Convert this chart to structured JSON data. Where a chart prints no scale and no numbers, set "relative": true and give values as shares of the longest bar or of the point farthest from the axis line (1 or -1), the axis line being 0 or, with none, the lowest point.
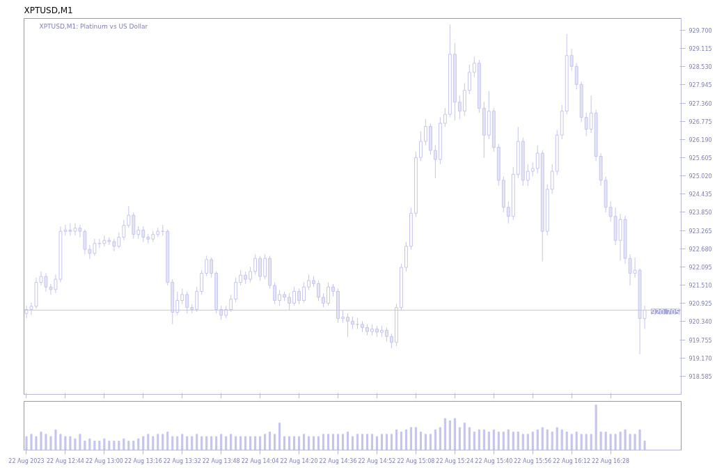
{
  "chart_data": [
    {
      "type": "candlestick",
      "tick_labels": "y",
      "title": "XPTUSD,M1",
      "subtitle": "XPTUSD,M1: Platinum vs US Dollar",
      "color": "#c4c4ee",
      "x": [
        "2023-08-22T12:28",
        "2023-08-22T12:30",
        "2023-08-22T12:32",
        "2023-08-22T12:34",
        "2023-08-22T12:36",
        "2023-08-22T12:38",
        "2023-08-22T12:40",
        "2023-08-22T12:42",
        "2023-08-22T12:44",
        "2023-08-22T12:46",
        "2023-08-22T12:48",
        "2023-08-22T12:50",
        "2023-08-22T12:52",
        "2023-08-22T12:54",
        "2023-08-22T12:56",
        "2023-08-22T12:58",
        "2023-08-22T13:00",
        "2023-08-22T13:02",
        "2023-08-22T13:04",
        "2023-08-22T13:06",
        "2023-08-22T13:08",
        "2023-08-22T13:10",
        "2023-08-22T13:12",
        "2023-08-22T13:14",
        "2023-08-22T13:16",
        "2023-08-22T13:18",
        "2023-08-22T13:20",
        "2023-08-22T13:22",
        "2023-08-22T13:24",
        "2023-08-22T13:26",
        "2023-08-22T13:28",
        "2023-08-22T13:30",
        "2023-08-22T13:32",
        "2023-08-22T13:34",
        "2023-08-22T13:36",
        "2023-08-22T13:38",
        "2023-08-22T13:40",
        "2023-08-22T13:42",
        "2023-08-22T13:44",
        "2023-08-22T13:46",
        "2023-08-22T13:48",
        "2023-08-22T13:50",
        "2023-08-22T13:52",
        "2023-08-22T13:54",
        "2023-08-22T13:56",
        "2023-08-22T13:58",
        "2023-08-22T14:00",
        "2023-08-22T14:02",
        "2023-08-22T14:04",
        "2023-08-22T14:06",
        "2023-08-22T14:08",
        "2023-08-22T14:10",
        "2023-08-22T14:12",
        "2023-08-22T14:14",
        "2023-08-22T14:16",
        "2023-08-22T14:18",
        "2023-08-22T14:20",
        "2023-08-22T14:22",
        "2023-08-22T14:24",
        "2023-08-22T14:26",
        "2023-08-22T14:28",
        "2023-08-22T14:30",
        "2023-08-22T14:32",
        "2023-08-22T14:34",
        "2023-08-22T14:36",
        "2023-08-22T14:38",
        "2023-08-22T14:40",
        "2023-08-22T14:42",
        "2023-08-22T14:44",
        "2023-08-22T14:46",
        "2023-08-22T14:48",
        "2023-08-22T14:50",
        "2023-08-22T14:52",
        "2023-08-22T14:54",
        "2023-08-22T14:56",
        "2023-08-22T14:58",
        "2023-08-22T15:00",
        "2023-08-22T15:02",
        "2023-08-22T15:04",
        "2023-08-22T15:06",
        "2023-08-22T15:08",
        "2023-08-22T15:10",
        "2023-08-22T15:12",
        "2023-08-22T15:14",
        "2023-08-22T15:16",
        "2023-08-22T15:18",
        "2023-08-22T15:20",
        "2023-08-22T15:22",
        "2023-08-22T15:24",
        "2023-08-22T15:26",
        "2023-08-22T15:28",
        "2023-08-22T15:30",
        "2023-08-22T15:32",
        "2023-08-22T15:34",
        "2023-08-22T15:36",
        "2023-08-22T15:38",
        "2023-08-22T15:40",
        "2023-08-22T15:42",
        "2023-08-22T15:44",
        "2023-08-22T15:46",
        "2023-08-22T15:48",
        "2023-08-22T15:50",
        "2023-08-22T15:52",
        "2023-08-22T15:54",
        "2023-08-22T15:56",
        "2023-08-22T15:58",
        "2023-08-22T16:00",
        "2023-08-22T16:02",
        "2023-08-22T16:04",
        "2023-08-22T16:06",
        "2023-08-22T16:08",
        "2023-08-22T16:10",
        "2023-08-22T16:12",
        "2023-08-22T16:14",
        "2023-08-22T16:16",
        "2023-08-22T16:18",
        "2023-08-22T16:20",
        "2023-08-22T16:22",
        "2023-08-22T16:24",
        "2023-08-22T16:26",
        "2023-08-22T16:28",
        "2023-08-22T16:30",
        "2023-08-22T16:32",
        "2023-08-22T16:34",
        "2023-08-22T16:36",
        "2023-08-22T16:38",
        "2023-08-22T16:40",
        "2023-08-22T16:42"
      ],
      "ohlc": [
        [
          920.6,
          920.85,
          920.45,
          920.73
        ],
        [
          920.73,
          920.95,
          920.55,
          920.83
        ],
        [
          920.83,
          921.75,
          920.75,
          921.6
        ],
        [
          921.6,
          921.95,
          921.5,
          921.79
        ],
        [
          921.79,
          921.9,
          921.3,
          921.45
        ],
        [
          921.45,
          921.55,
          921.2,
          921.37
        ],
        [
          921.37,
          921.85,
          921.25,
          921.7
        ],
        [
          921.7,
          923.4,
          921.6,
          923.24
        ],
        [
          923.24,
          923.45,
          923.1,
          923.28
        ],
        [
          923.28,
          923.5,
          923.1,
          923.24
        ],
        [
          923.24,
          923.5,
          923.1,
          923.34
        ],
        [
          923.34,
          923.45,
          923.05,
          923.24
        ],
        [
          923.24,
          923.3,
          922.5,
          922.66
        ],
        [
          922.66,
          922.8,
          922.35,
          922.53
        ],
        [
          922.53,
          923.0,
          922.45,
          922.85
        ],
        [
          922.85,
          923.0,
          922.7,
          922.85
        ],
        [
          922.85,
          923.1,
          922.75,
          922.95
        ],
        [
          922.95,
          923.05,
          922.8,
          922.91
        ],
        [
          922.91,
          923.0,
          922.6,
          922.76
        ],
        [
          922.76,
          923.2,
          922.7,
          923.05
        ],
        [
          923.05,
          923.6,
          922.95,
          923.43
        ],
        [
          923.43,
          924.05,
          923.35,
          923.76
        ],
        [
          923.76,
          923.85,
          923.0,
          923.14
        ],
        [
          923.14,
          923.4,
          923.0,
          923.28
        ],
        [
          923.28,
          923.4,
          922.9,
          923.05
        ],
        [
          923.05,
          923.15,
          922.85,
          922.99
        ],
        [
          922.99,
          923.25,
          922.9,
          923.14
        ],
        [
          923.14,
          923.35,
          923.05,
          923.24
        ],
        [
          923.24,
          923.45,
          923.1,
          923.24
        ],
        [
          923.24,
          923.3,
          921.5,
          921.6
        ],
        [
          921.6,
          921.7,
          920.25,
          920.64
        ],
        [
          920.64,
          921.3,
          920.55,
          921.02
        ],
        [
          921.02,
          921.4,
          920.9,
          921.21
        ],
        [
          921.21,
          921.3,
          920.6,
          920.79
        ],
        [
          920.79,
          920.9,
          920.6,
          920.73
        ],
        [
          920.73,
          921.45,
          920.65,
          921.31
        ],
        [
          921.31,
          922.0,
          921.2,
          921.89
        ],
        [
          921.89,
          922.45,
          921.8,
          922.33
        ],
        [
          922.33,
          922.4,
          921.75,
          921.89
        ],
        [
          921.89,
          921.95,
          920.6,
          920.73
        ],
        [
          920.73,
          920.85,
          920.4,
          920.54
        ],
        [
          920.54,
          920.85,
          920.45,
          920.73
        ],
        [
          920.73,
          921.2,
          920.65,
          921.06
        ],
        [
          921.06,
          921.75,
          920.95,
          921.6
        ],
        [
          921.6,
          922.0,
          921.5,
          921.83
        ],
        [
          921.83,
          921.95,
          921.55,
          921.7
        ],
        [
          921.7,
          922.1,
          921.6,
          921.95
        ],
        [
          921.95,
          922.5,
          921.85,
          922.37
        ],
        [
          922.37,
          922.45,
          921.65,
          921.79
        ],
        [
          921.79,
          922.5,
          921.7,
          922.37
        ],
        [
          922.37,
          922.45,
          921.4,
          921.5
        ],
        [
          921.5,
          921.6,
          920.9,
          921.02
        ],
        [
          921.02,
          921.35,
          920.85,
          921.21
        ],
        [
          921.21,
          921.3,
          921.0,
          921.12
        ],
        [
          921.12,
          921.25,
          920.7,
          920.93
        ],
        [
          920.93,
          921.45,
          920.85,
          921.31
        ],
        [
          921.31,
          921.4,
          920.9,
          921.02
        ],
        [
          921.02,
          921.6,
          920.95,
          921.45
        ],
        [
          921.45,
          921.85,
          921.35,
          921.66
        ],
        [
          921.66,
          921.8,
          921.45,
          921.56
        ],
        [
          921.56,
          921.65,
          921.0,
          921.12
        ],
        [
          921.12,
          921.25,
          920.8,
          920.93
        ],
        [
          920.93,
          921.6,
          920.85,
          921.45
        ],
        [
          921.45,
          921.55,
          921.15,
          921.31
        ],
        [
          921.31,
          921.4,
          920.3,
          920.44
        ],
        [
          920.44,
          920.7,
          920.3,
          920.48
        ],
        [
          920.48,
          920.6,
          919.85,
          920.35
        ],
        [
          920.35,
          920.5,
          920.1,
          920.25
        ],
        [
          920.25,
          920.45,
          920.1,
          920.25
        ],
        [
          920.25,
          920.35,
          920.0,
          920.15
        ],
        [
          920.15,
          920.25,
          919.9,
          920.02
        ],
        [
          920.02,
          920.25,
          919.9,
          920.1
        ],
        [
          920.1,
          920.2,
          919.85,
          920.0
        ],
        [
          920.0,
          920.2,
          919.85,
          920.06
        ],
        [
          920.06,
          920.15,
          919.7,
          919.86
        ],
        [
          919.86,
          919.95,
          919.48,
          919.67
        ],
        [
          919.67,
          920.9,
          919.55,
          920.79
        ],
        [
          920.79,
          922.2,
          920.7,
          922.08
        ],
        [
          922.08,
          922.9,
          921.95,
          922.76
        ],
        [
          922.76,
          924.0,
          922.65,
          923.82
        ],
        [
          923.82,
          925.8,
          923.7,
          925.61
        ],
        [
          925.61,
          926.45,
          925.5,
          926.13
        ],
        [
          926.13,
          926.85,
          926.0,
          926.61
        ],
        [
          926.61,
          926.7,
          925.7,
          925.84
        ],
        [
          925.84,
          926.0,
          924.95,
          925.55
        ],
        [
          925.55,
          926.9,
          925.4,
          926.71
        ],
        [
          926.71,
          927.2,
          926.6,
          927.0
        ],
        [
          927.0,
          929.89,
          926.9,
          928.93
        ],
        [
          928.93,
          929.3,
          926.8,
          927.39
        ],
        [
          927.39,
          927.6,
          926.85,
          927.1
        ],
        [
          927.1,
          928.0,
          926.95,
          927.77
        ],
        [
          927.77,
          928.6,
          927.65,
          928.35
        ],
        [
          928.35,
          928.85,
          928.2,
          928.64
        ],
        [
          928.64,
          928.75,
          927.05,
          927.19
        ],
        [
          927.19,
          927.4,
          925.6,
          926.33
        ],
        [
          926.33,
          927.75,
          926.2,
          927.1
        ],
        [
          927.1,
          927.2,
          925.8,
          925.94
        ],
        [
          925.94,
          926.05,
          924.7,
          924.88
        ],
        [
          924.88,
          925.0,
          923.85,
          924.01
        ],
        [
          924.01,
          924.2,
          923.5,
          923.72
        ],
        [
          923.72,
          925.3,
          923.6,
          925.07
        ],
        [
          925.07,
          926.6,
          924.95,
          926.13
        ],
        [
          926.13,
          926.25,
          924.7,
          924.88
        ],
        [
          924.88,
          925.4,
          924.7,
          925.17
        ],
        [
          925.17,
          925.45,
          925.0,
          925.26
        ],
        [
          925.26,
          926.0,
          925.1,
          925.75
        ],
        [
          925.75,
          925.85,
          922.27,
          923.24
        ],
        [
          923.24,
          924.75,
          923.1,
          924.59
        ],
        [
          924.59,
          925.4,
          924.45,
          925.17
        ],
        [
          925.17,
          926.5,
          925.05,
          926.33
        ],
        [
          926.33,
          927.3,
          926.2,
          927.1
        ],
        [
          927.1,
          929.58,
          927.0,
          928.89
        ],
        [
          928.89,
          929.1,
          928.4,
          928.54
        ],
        [
          928.54,
          928.65,
          927.8,
          927.96
        ],
        [
          927.96,
          928.05,
          926.75,
          926.9
        ],
        [
          926.9,
          927.05,
          926.3,
          926.52
        ],
        [
          926.52,
          927.6,
          926.4,
          927.04
        ],
        [
          927.04,
          927.15,
          925.5,
          925.65
        ],
        [
          925.65,
          925.75,
          924.7,
          924.88
        ],
        [
          924.88,
          925.0,
          923.85,
          924.01
        ],
        [
          924.01,
          924.2,
          923.55,
          923.72
        ],
        [
          923.72,
          924.0,
          922.8,
          922.95
        ],
        [
          922.95,
          923.8,
          922.3,
          923.62
        ],
        [
          923.62,
          923.75,
          922.2,
          922.37
        ],
        [
          922.37,
          922.5,
          921.5,
          921.89
        ],
        [
          921.89,
          922.4,
          921.75,
          921.99
        ],
        [
          921.99,
          922.05,
          919.29,
          920.44
        ],
        [
          920.44,
          920.85,
          920.1,
          920.71
        ]
      ],
      "xlim": [
        "2023-08-22T12:27",
        "2023-08-22T16:57"
      ],
      "xticks": [
        {
          "value": "2023-08-22T12:28",
          "label": null
        },
        {
          "value": "2023-08-22T12:44",
          "label": null
        },
        {
          "value": "2023-08-22T13:00",
          "label": null
        },
        {
          "value": "2023-08-22T13:16",
          "label": null
        },
        {
          "value": "2023-08-22T13:32",
          "label": null
        },
        {
          "value": "2023-08-22T13:48",
          "label": null
        },
        {
          "value": "2023-08-22T14:04",
          "label": null
        },
        {
          "value": "2023-08-22T14:20",
          "label": null
        },
        {
          "value": "2023-08-22T14:36",
          "label": null
        },
        {
          "value": "2023-08-22T14:52",
          "label": null
        },
        {
          "value": "2023-08-22T15:08",
          "label": null
        },
        {
          "value": "2023-08-22T15:24",
          "label": null
        },
        {
          "value": "2023-08-22T15:40",
          "label": null
        },
        {
          "value": "2023-08-22T15:56",
          "label": null
        },
        {
          "value": "2023-08-22T16:12",
          "label": null
        },
        {
          "value": "2023-08-22T16:28",
          "label": null
        }
      ],
      "ylim": [
        918.0,
        930.08
      ],
      "yticks": [
        {
          "value": 929.7,
          "label": "929.700"
        },
        929.115,
        {
          "value": 928.53,
          "label": "928.530"
        },
        927.945,
        {
          "value": 927.36,
          "label": "927.360"
        },
        926.775,
        {
          "value": 926.19,
          "label": "926.190"
        },
        925.605,
        {
          "value": 925.02,
          "label": "925.020"
        },
        924.435,
        {
          "value": 923.85,
          "label": "923.850"
        },
        923.265,
        {
          "value": 922.68,
          "label": "922.680"
        },
        922.095,
        {
          "value": 921.51,
          "label": "921.510"
        },
        920.925,
        {
          "value": 920.34,
          "label": "920.340"
        },
        919.755,
        {
          "value": 919.17,
          "label": "919.170"
        },
        918.585
      ],
      "ref_lines": [
        {
          "axis": "y",
          "value": 920.705,
          "label": "920.705",
          "color": "#c4c4ee"
        }
      ],
      "grid": false
    },
    {
      "type": "bar",
      "relative": true,
      "color": "#c4c4ee",
      "xlim": [
        "2023-08-22T12:27",
        "2023-08-22T16:57"
      ],
      "xticks": [
        {
          "value": "2023-08-22T12:28",
          "label": "22 Aug 2023"
        },
        {
          "value": "2023-08-22T12:44",
          "label": "22 Aug 12:44"
        },
        {
          "value": "2023-08-22T13:00",
          "label": "22 Aug 13:00"
        },
        {
          "value": "2023-08-22T13:16",
          "label": "22 Aug 13:16"
        },
        {
          "value": "2023-08-22T13:32",
          "label": "22 Aug 13:32"
        },
        {
          "value": "2023-08-22T13:48",
          "label": "22 Aug 13:48"
        },
        {
          "value": "2023-08-22T14:04",
          "label": "22 Aug 14:04"
        },
        {
          "value": "2023-08-22T14:20",
          "label": "22 Aug 14:20"
        },
        {
          "value": "2023-08-22T14:36",
          "label": "22 Aug 14:36"
        },
        {
          "value": "2023-08-22T14:52",
          "label": "22 Aug 14:52"
        },
        {
          "value": "2023-08-22T15:08",
          "label": "22 Aug 15:08"
        },
        {
          "value": "2023-08-22T15:24",
          "label": "22 Aug 15:24"
        },
        {
          "value": "2023-08-22T15:40",
          "label": "22 Aug 15:40"
        },
        {
          "value": "2023-08-22T15:56",
          "label": "22 Aug 15:56"
        },
        {
          "value": "2023-08-22T16:12",
          "label": "22 Aug 16:12"
        },
        {
          "value": "2023-08-22T16:28",
          "label": "22 Aug 16:28"
        }
      ],
      "x": [
        "2023-08-22T12:28",
        "2023-08-22T12:30",
        "2023-08-22T12:32",
        "2023-08-22T12:34",
        "2023-08-22T12:36",
        "2023-08-22T12:38",
        "2023-08-22T12:40",
        "2023-08-22T12:42",
        "2023-08-22T12:44",
        "2023-08-22T12:46",
        "2023-08-22T12:48",
        "2023-08-22T12:50",
        "2023-08-22T12:52",
        "2023-08-22T12:54",
        "2023-08-22T12:56",
        "2023-08-22T12:58",
        "2023-08-22T13:00",
        "2023-08-22T13:02",
        "2023-08-22T13:04",
        "2023-08-22T13:06",
        "2023-08-22T13:08",
        "2023-08-22T13:10",
        "2023-08-22T13:12",
        "2023-08-22T13:14",
        "2023-08-22T13:16",
        "2023-08-22T13:18",
        "2023-08-22T13:20",
        "2023-08-22T13:22",
        "2023-08-22T13:24",
        "2023-08-22T13:26",
        "2023-08-22T13:28",
        "2023-08-22T13:30",
        "2023-08-22T13:32",
        "2023-08-22T13:34",
        "2023-08-22T13:36",
        "2023-08-22T13:38",
        "2023-08-22T13:40",
        "2023-08-22T13:42",
        "2023-08-22T13:44",
        "2023-08-22T13:46",
        "2023-08-22T13:48",
        "2023-08-22T13:50",
        "2023-08-22T13:52",
        "2023-08-22T13:54",
        "2023-08-22T13:56",
        "2023-08-22T13:58",
        "2023-08-22T14:00",
        "2023-08-22T14:02",
        "2023-08-22T14:04",
        "2023-08-22T14:06",
        "2023-08-22T14:08",
        "2023-08-22T14:10",
        "2023-08-22T14:12",
        "2023-08-22T14:14",
        "2023-08-22T14:16",
        "2023-08-22T14:18",
        "2023-08-22T14:20",
        "2023-08-22T14:22",
        "2023-08-22T14:24",
        "2023-08-22T14:26",
        "2023-08-22T14:28",
        "2023-08-22T14:30",
        "2023-08-22T14:32",
        "2023-08-22T14:34",
        "2023-08-22T14:36",
        "2023-08-22T14:38",
        "2023-08-22T14:40",
        "2023-08-22T14:42",
        "2023-08-22T14:44",
        "2023-08-22T14:46",
        "2023-08-22T14:48",
        "2023-08-22T14:50",
        "2023-08-22T14:52",
        "2023-08-22T14:54",
        "2023-08-22T14:56",
        "2023-08-22T14:58",
        "2023-08-22T15:00",
        "2023-08-22T15:02",
        "2023-08-22T15:04",
        "2023-08-22T15:06",
        "2023-08-22T15:08",
        "2023-08-22T15:10",
        "2023-08-22T15:12",
        "2023-08-22T15:14",
        "2023-08-22T15:16",
        "2023-08-22T15:18",
        "2023-08-22T15:20",
        "2023-08-22T15:22",
        "2023-08-22T15:24",
        "2023-08-22T15:26",
        "2023-08-22T15:28",
        "2023-08-22T15:30",
        "2023-08-22T15:32",
        "2023-08-22T15:34",
        "2023-08-22T15:36",
        "2023-08-22T15:38",
        "2023-08-22T15:40",
        "2023-08-22T15:42",
        "2023-08-22T15:44",
        "2023-08-22T15:46",
        "2023-08-22T15:48",
        "2023-08-22T15:50",
        "2023-08-22T15:52",
        "2023-08-22T15:54",
        "2023-08-22T15:56",
        "2023-08-22T15:58",
        "2023-08-22T16:00",
        "2023-08-22T16:02",
        "2023-08-22T16:04",
        "2023-08-22T16:06",
        "2023-08-22T16:08",
        "2023-08-22T16:10",
        "2023-08-22T16:12",
        "2023-08-22T16:14",
        "2023-08-22T16:16",
        "2023-08-22T16:18",
        "2023-08-22T16:20",
        "2023-08-22T16:22",
        "2023-08-22T16:24",
        "2023-08-22T16:26",
        "2023-08-22T16:28",
        "2023-08-22T16:30",
        "2023-08-22T16:32",
        "2023-08-22T16:34",
        "2023-08-22T16:36",
        "2023-08-22T16:38",
        "2023-08-22T16:40",
        "2023-08-22T16:42"
      ],
      "values": [
        0.3,
        0.35,
        0.3,
        0.4,
        0.35,
        0.3,
        0.45,
        0.35,
        0.3,
        0.3,
        0.25,
        0.35,
        0.2,
        0.25,
        0.2,
        0.2,
        0.25,
        0.2,
        0.2,
        0.2,
        0.25,
        0.2,
        0.2,
        0.25,
        0.3,
        0.35,
        0.3,
        0.35,
        0.35,
        0.4,
        0.3,
        0.3,
        0.35,
        0.3,
        0.3,
        0.35,
        0.3,
        0.3,
        0.3,
        0.3,
        0.35,
        0.3,
        0.35,
        0.3,
        0.3,
        0.3,
        0.3,
        0.3,
        0.3,
        0.35,
        0.4,
        0.35,
        0.6,
        0.3,
        0.3,
        0.3,
        0.3,
        0.35,
        0.3,
        0.3,
        0.3,
        0.35,
        0.35,
        0.35,
        0.35,
        0.35,
        0.4,
        0.3,
        0.35,
        0.35,
        0.35,
        0.35,
        0.3,
        0.35,
        0.35,
        0.35,
        0.45,
        0.4,
        0.45,
        0.5,
        0.5,
        0.4,
        0.35,
        0.35,
        0.45,
        0.5,
        0.7,
        0.65,
        0.7,
        0.5,
        0.6,
        0.5,
        0.4,
        0.45,
        0.45,
        0.4,
        0.45,
        0.4,
        0.4,
        0.45,
        0.4,
        0.4,
        0.35,
        0.35,
        0.4,
        0.45,
        0.5,
        0.45,
        0.4,
        0.5,
        0.45,
        0.4,
        0.35,
        0.4,
        0.35,
        0.35,
        0.35,
        1.0,
        0.4,
        0.4,
        0.35,
        0.35,
        0.4,
        0.45,
        0.35,
        0.35,
        0.45,
        0.2
      ]
    }
  ]
}
